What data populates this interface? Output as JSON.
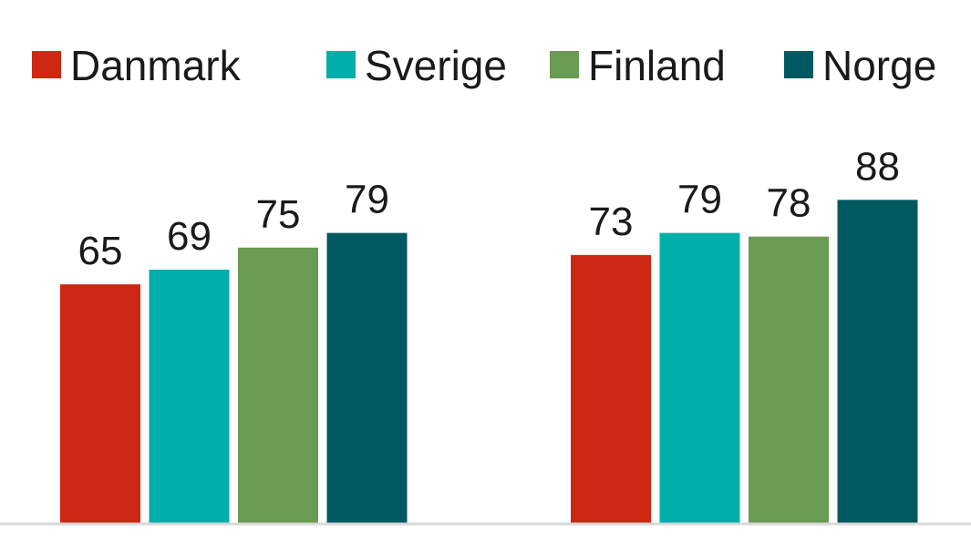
{
  "chart_data": {
    "type": "bar",
    "categories": [
      "",
      ""
    ],
    "series": [
      {
        "name": "Danmark",
        "values": [
          65,
          73
        ],
        "color": "#cc2814"
      },
      {
        "name": "Sverige",
        "values": [
          69,
          79
        ],
        "color": "#00aeaa"
      },
      {
        "name": "Finland",
        "values": [
          75,
          78
        ],
        "color": "#6a9a54"
      },
      {
        "name": "Norge",
        "values": [
          79,
          88
        ],
        "color": "#005860"
      }
    ],
    "title": "",
    "xlabel": "",
    "ylabel": "",
    "legend_position": "top",
    "data_labels": true,
    "grid": false
  }
}
